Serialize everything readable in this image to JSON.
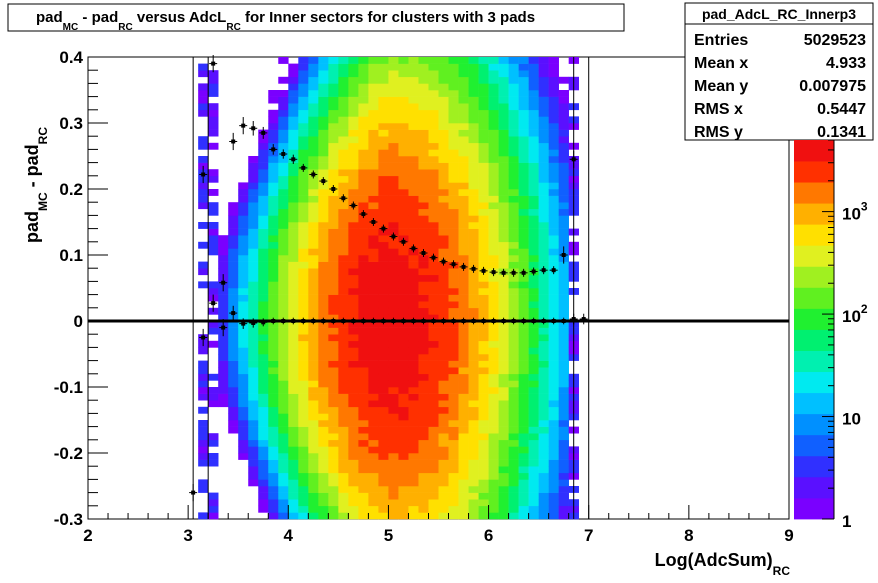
{
  "title": {
    "parts": [
      {
        "text": "pad",
        "sub": "MC"
      },
      {
        "text": " - pad",
        "sub": "RC"
      },
      {
        "text": " versus AdcL",
        "sub": "RC"
      },
      {
        "text": " for Inner sectors for clusters with 3 pads",
        "sub": ""
      }
    ]
  },
  "stats": {
    "name": "pad_AdcL_RC_Innerp3",
    "rows": [
      {
        "label": "Entries",
        "value": "5029523"
      },
      {
        "label": "Mean x",
        "value": "4.933"
      },
      {
        "label": "Mean y",
        "value": "0.007975"
      },
      {
        "label": "RMS x",
        "value": "0.5447"
      },
      {
        "label": "RMS y",
        "value": "0.1341"
      }
    ]
  },
  "colors": {
    "palette": [
      "#7a00ff",
      "#5a10ff",
      "#3030ff",
      "#1060ff",
      "#0090ff",
      "#00c0ff",
      "#00eaf0",
      "#00f0b0",
      "#00f070",
      "#20f030",
      "#60f020",
      "#a0f020",
      "#e0f020",
      "#ffe000",
      "#ffb000",
      "#ff7800",
      "#ff3000",
      "#f01010"
    ],
    "frame": "#000000"
  },
  "chart_data": {
    "type": "heatmap",
    "xlabel": {
      "text": "Log(AdcSum)",
      "sub": "RC"
    },
    "ylabel": {
      "text": "pad",
      "sub": "MC",
      "text2": " - pad",
      "sub2": "RC"
    },
    "xlim": [
      2,
      9
    ],
    "ylim": [
      -0.3,
      0.4
    ],
    "x_ticks": [
      "2",
      "3",
      "4",
      "5",
      "6",
      "7",
      "8",
      "9"
    ],
    "y_ticks": [
      "-0.3",
      "-0.2",
      "-0.1",
      "0",
      "0.1",
      "0.2",
      "0.3",
      "0.4"
    ],
    "z_scale": "log",
    "z_range": [
      1,
      5000
    ],
    "z_ticks": [
      {
        "base": "1",
        "exp": "",
        "value": 1
      },
      {
        "base": "10",
        "exp": "",
        "value": 10
      },
      {
        "base": "10",
        "exp": "2",
        "value": 100
      },
      {
        "base": "10",
        "exp": "3",
        "value": 1000
      }
    ],
    "density_model": {
      "x_range": [
        3.15,
        6.9
      ],
      "x_peak": 5.0,
      "sigma_y": 0.13,
      "peak": 4500
    },
    "profile_upper": {
      "x": [
        3.15,
        3.25,
        3.35,
        3.45,
        3.55,
        3.65,
        3.75,
        3.85,
        3.95,
        4.05,
        4.15,
        4.25,
        4.35,
        4.45,
        4.55,
        4.65,
        4.75,
        4.85,
        4.95,
        5.05,
        5.15,
        5.25,
        5.35,
        5.45,
        5.55,
        5.65,
        5.75,
        5.85,
        5.95,
        6.05,
        6.15,
        6.25,
        6.35,
        6.45,
        6.55,
        6.65,
        6.75,
        6.85
      ],
      "y": [
        0.222,
        0.39,
        -0.01,
        0.272,
        0.296,
        0.292,
        0.285,
        0.26,
        0.253,
        0.245,
        0.232,
        0.222,
        0.212,
        0.2,
        0.186,
        0.175,
        0.162,
        0.15,
        0.14,
        0.128,
        0.12,
        0.11,
        0.103,
        0.096,
        0.09,
        0.086,
        0.082,
        0.079,
        0.076,
        0.074,
        0.073,
        0.073,
        0.073,
        0.075,
        0.077,
        0.077,
        0.1,
        0.245
      ],
      "err": [
        0.01,
        0.01,
        0.01,
        0.01,
        0.01,
        0.008,
        0.006,
        0.005,
        0.004,
        0.004,
        0.003,
        0.003,
        0.003,
        0.003,
        0.003,
        0.003,
        0.003,
        0.003,
        0.003,
        0.003,
        0.003,
        0.003,
        0.003,
        0.003,
        0.003,
        0.003,
        0.003,
        0.003,
        0.003,
        0.003,
        0.003,
        0.003,
        0.003,
        0.003,
        0.003,
        0.003,
        0.01,
        0.01
      ]
    },
    "profile_lower": {
      "x": [
        3.05,
        3.15,
        3.25,
        3.35,
        3.45,
        3.55,
        3.65,
        3.75,
        3.85,
        3.95,
        4.05,
        4.15,
        4.25,
        4.35,
        4.45,
        4.55,
        4.65,
        4.75,
        4.85,
        4.95,
        5.05,
        5.15,
        5.25,
        5.35,
        5.45,
        5.55,
        5.65,
        5.75,
        5.85,
        5.95,
        6.05,
        6.15,
        6.25,
        6.35,
        6.45,
        6.55,
        6.65,
        6.75,
        6.85,
        6.95
      ],
      "y": [
        -0.26,
        -0.025,
        0.027,
        0.058,
        0.012,
        -0.004,
        -0.003,
        -0.002,
        0.0,
        0.0,
        0.0,
        0.0,
        0.0,
        0.0,
        0.0,
        0.0,
        0.0,
        0.0,
        0.0,
        0.0,
        0.0,
        0.0,
        0.0,
        0.0,
        0.0,
        0.0,
        0.0,
        0.0,
        0.0,
        0.0,
        0.0,
        0.0,
        0.0,
        0.0,
        0.0,
        0.0,
        0.0,
        0.0,
        0.003,
        0.003
      ],
      "err": [
        0.01,
        0.01,
        0.01,
        0.01,
        0.008,
        0.005,
        0.004,
        0.003,
        0.002,
        0.002,
        0.002,
        0.002,
        0.002,
        0.002,
        0.002,
        0.002,
        0.002,
        0.002,
        0.002,
        0.002,
        0.002,
        0.002,
        0.002,
        0.002,
        0.002,
        0.002,
        0.002,
        0.002,
        0.002,
        0.002,
        0.002,
        0.002,
        0.002,
        0.002,
        0.002,
        0.002,
        0.002,
        0.002,
        0.005,
        0.005
      ]
    },
    "reference_line_y": 0,
    "vertical_lines_x": [
      3.05,
      3.2,
      6.85,
      7.0
    ]
  }
}
